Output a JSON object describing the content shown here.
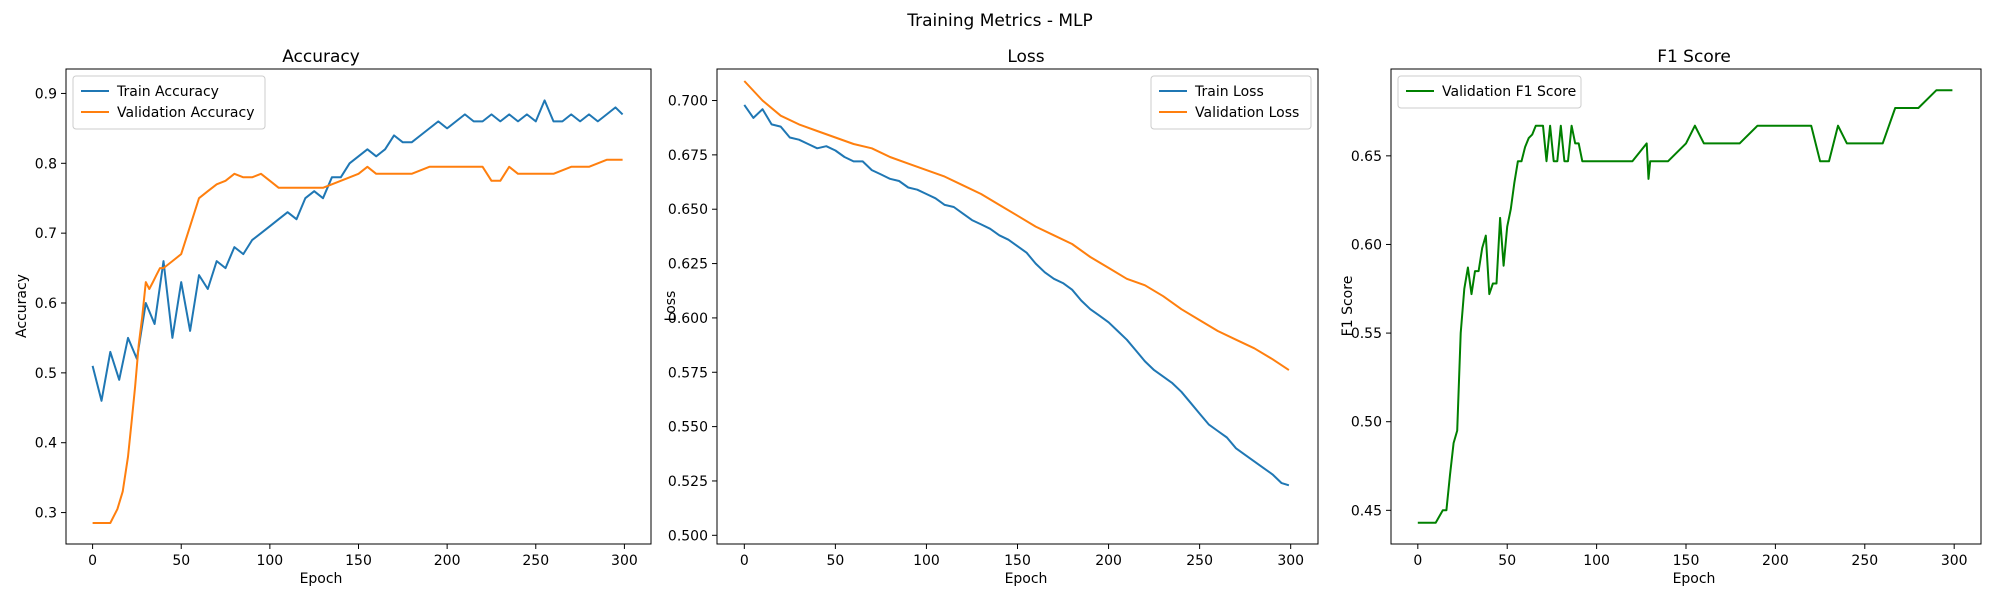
{
  "figure": {
    "suptitle": "Training Metrics - MLP"
  },
  "chart_data": [
    {
      "type": "line",
      "title": "Accuracy",
      "xlabel": "Epoch",
      "ylabel": "Accuracy",
      "xlim": [
        -15,
        315
      ],
      "ylim": [
        0.255,
        0.935
      ],
      "xticks": [
        0,
        50,
        100,
        150,
        200,
        250,
        300
      ],
      "xtick_labels": [
        "0",
        "50",
        "100",
        "150",
        "200",
        "250",
        "300"
      ],
      "yticks": [
        0.3,
        0.4,
        0.5,
        0.6,
        0.7,
        0.8,
        0.9
      ],
      "ytick_labels": [
        "0.3",
        "0.4",
        "0.5",
        "0.6",
        "0.7",
        "0.8",
        "0.9"
      ],
      "legend_loc": "upper-left",
      "series": [
        {
          "name": "Train Accuracy",
          "color": "#1f77b4",
          "x": [
            0,
            5,
            10,
            15,
            20,
            25,
            30,
            35,
            40,
            45,
            50,
            55,
            60,
            65,
            70,
            75,
            80,
            85,
            90,
            95,
            100,
            105,
            110,
            115,
            120,
            125,
            130,
            135,
            140,
            145,
            150,
            155,
            160,
            165,
            170,
            175,
            180,
            185,
            190,
            195,
            200,
            205,
            210,
            215,
            220,
            225,
            230,
            235,
            240,
            245,
            250,
            255,
            260,
            265,
            270,
            275,
            280,
            285,
            290,
            295,
            299
          ],
          "y": [
            0.51,
            0.46,
            0.53,
            0.49,
            0.55,
            0.52,
            0.6,
            0.57,
            0.66,
            0.55,
            0.63,
            0.56,
            0.64,
            0.62,
            0.66,
            0.65,
            0.68,
            0.67,
            0.69,
            0.7,
            0.71,
            0.72,
            0.73,
            0.72,
            0.75,
            0.76,
            0.75,
            0.78,
            0.78,
            0.8,
            0.81,
            0.82,
            0.81,
            0.82,
            0.84,
            0.83,
            0.83,
            0.84,
            0.85,
            0.86,
            0.85,
            0.86,
            0.87,
            0.86,
            0.86,
            0.87,
            0.86,
            0.87,
            0.86,
            0.87,
            0.86,
            0.89,
            0.86,
            0.86,
            0.87,
            0.86,
            0.87,
            0.86,
            0.87,
            0.88,
            0.87
          ]
        },
        {
          "name": "Validation Accuracy",
          "color": "#ff7f0e",
          "x": [
            0,
            10,
            14,
            17,
            20,
            22,
            24,
            26,
            28,
            30,
            32,
            34,
            36,
            38,
            40,
            45,
            50,
            55,
            60,
            65,
            70,
            75,
            80,
            85,
            90,
            95,
            100,
            105,
            110,
            120,
            130,
            140,
            150,
            155,
            160,
            170,
            180,
            190,
            200,
            210,
            220,
            225,
            230,
            235,
            240,
            250,
            260,
            270,
            280,
            290,
            299
          ],
          "y": [
            0.285,
            0.285,
            0.305,
            0.33,
            0.38,
            0.43,
            0.48,
            0.54,
            0.58,
            0.63,
            0.62,
            0.63,
            0.64,
            0.65,
            0.65,
            0.66,
            0.67,
            0.71,
            0.75,
            0.76,
            0.77,
            0.775,
            0.785,
            0.78,
            0.78,
            0.785,
            0.775,
            0.765,
            0.765,
            0.765,
            0.765,
            0.775,
            0.785,
            0.795,
            0.785,
            0.785,
            0.785,
            0.795,
            0.795,
            0.795,
            0.795,
            0.775,
            0.775,
            0.795,
            0.785,
            0.785,
            0.785,
            0.795,
            0.795,
            0.805,
            0.805
          ]
        }
      ]
    },
    {
      "type": "line",
      "title": "Loss",
      "xlabel": "Epoch",
      "ylabel": "Loss",
      "xlim": [
        -15,
        315
      ],
      "ylim": [
        0.496,
        0.7145
      ],
      "xticks": [
        0,
        50,
        100,
        150,
        200,
        250,
        300
      ],
      "xtick_labels": [
        "0",
        "50",
        "100",
        "150",
        "200",
        "250",
        "300"
      ],
      "yticks": [
        0.5,
        0.525,
        0.55,
        0.575,
        0.6,
        0.625,
        0.65,
        0.675,
        0.7
      ],
      "ytick_labels": [
        "0.500",
        "0.525",
        "0.550",
        "0.575",
        "0.600",
        "0.625",
        "0.650",
        "0.675",
        "0.700"
      ],
      "legend_loc": "upper-right",
      "series": [
        {
          "name": "Train Loss",
          "color": "#1f77b4",
          "x": [
            0,
            5,
            10,
            15,
            20,
            25,
            30,
            35,
            40,
            45,
            50,
            55,
            60,
            65,
            70,
            75,
            80,
            85,
            90,
            95,
            100,
            105,
            110,
            115,
            120,
            125,
            130,
            135,
            140,
            145,
            150,
            155,
            160,
            165,
            170,
            175,
            180,
            185,
            190,
            195,
            200,
            205,
            210,
            215,
            220,
            225,
            230,
            235,
            240,
            245,
            250,
            255,
            260,
            265,
            270,
            275,
            280,
            285,
            290,
            295,
            299
          ],
          "y": [
            0.698,
            0.692,
            0.696,
            0.689,
            0.688,
            0.683,
            0.682,
            0.68,
            0.678,
            0.679,
            0.677,
            0.674,
            0.672,
            0.672,
            0.668,
            0.666,
            0.664,
            0.663,
            0.66,
            0.659,
            0.657,
            0.655,
            0.652,
            0.651,
            0.648,
            0.645,
            0.643,
            0.641,
            0.638,
            0.636,
            0.633,
            0.63,
            0.625,
            0.621,
            0.618,
            0.616,
            0.613,
            0.608,
            0.604,
            0.601,
            0.598,
            0.594,
            0.59,
            0.585,
            0.58,
            0.576,
            0.573,
            0.57,
            0.566,
            0.561,
            0.556,
            0.551,
            0.548,
            0.545,
            0.54,
            0.537,
            0.534,
            0.531,
            0.528,
            0.524,
            0.523
          ]
        },
        {
          "name": "Validation Loss",
          "color": "#ff7f0e",
          "x": [
            0,
            10,
            20,
            30,
            40,
            50,
            60,
            70,
            80,
            90,
            100,
            110,
            120,
            130,
            140,
            150,
            160,
            170,
            180,
            190,
            200,
            210,
            220,
            230,
            240,
            250,
            260,
            270,
            280,
            290,
            299
          ],
          "y": [
            0.709,
            0.7,
            0.693,
            0.689,
            0.686,
            0.683,
            0.68,
            0.678,
            0.674,
            0.671,
            0.668,
            0.665,
            0.661,
            0.657,
            0.652,
            0.647,
            0.642,
            0.638,
            0.634,
            0.628,
            0.623,
            0.618,
            0.615,
            0.61,
            0.604,
            0.599,
            0.594,
            0.59,
            0.586,
            0.581,
            0.576
          ]
        }
      ]
    },
    {
      "type": "line",
      "title": "F1 Score",
      "xlabel": "Epoch",
      "ylabel": "F1 Score",
      "xlim": [
        -15,
        315
      ],
      "ylim": [
        0.431,
        0.699
      ],
      "xticks": [
        0,
        50,
        100,
        150,
        200,
        250,
        300
      ],
      "xtick_labels": [
        "0",
        "50",
        "100",
        "150",
        "200",
        "250",
        "300"
      ],
      "yticks": [
        0.45,
        0.5,
        0.55,
        0.6,
        0.65
      ],
      "ytick_labels": [
        "0.45",
        "0.50",
        "0.55",
        "0.60",
        "0.65"
      ],
      "legend_loc": "upper-left",
      "series": [
        {
          "name": "Validation F1 Score",
          "color": "#008000",
          "x": [
            0,
            10,
            14,
            16,
            18,
            20,
            22,
            24,
            26,
            28,
            30,
            32,
            34,
            36,
            38,
            40,
            42,
            44,
            46,
            48,
            50,
            52,
            54,
            56,
            58,
            60,
            62,
            64,
            66,
            68,
            70,
            72,
            74,
            76,
            78,
            80,
            82,
            84,
            86,
            88,
            90,
            92,
            94,
            96,
            98,
            100,
            110,
            120,
            128,
            129,
            130,
            140,
            150,
            155,
            160,
            170,
            180,
            190,
            200,
            210,
            220,
            225,
            230,
            235,
            240,
            250,
            260,
            267,
            270,
            280,
            290,
            299
          ],
          "y": [
            0.443,
            0.443,
            0.45,
            0.45,
            0.47,
            0.488,
            0.495,
            0.55,
            0.575,
            0.587,
            0.572,
            0.585,
            0.585,
            0.598,
            0.605,
            0.572,
            0.578,
            0.578,
            0.615,
            0.588,
            0.61,
            0.62,
            0.635,
            0.647,
            0.647,
            0.655,
            0.66,
            0.662,
            0.667,
            0.667,
            0.667,
            0.647,
            0.667,
            0.647,
            0.647,
            0.667,
            0.647,
            0.647,
            0.667,
            0.657,
            0.657,
            0.647,
            0.647,
            0.647,
            0.647,
            0.647,
            0.647,
            0.647,
            0.657,
            0.637,
            0.647,
            0.647,
            0.657,
            0.667,
            0.657,
            0.657,
            0.657,
            0.667,
            0.667,
            0.667,
            0.667,
            0.647,
            0.647,
            0.667,
            0.657,
            0.657,
            0.657,
            0.677,
            0.677,
            0.677,
            0.687,
            0.687
          ]
        }
      ]
    }
  ]
}
